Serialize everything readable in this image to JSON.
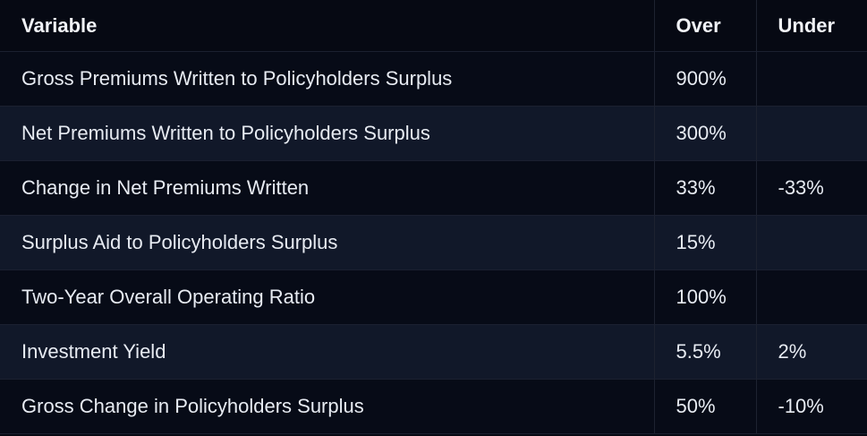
{
  "table": {
    "headers": {
      "variable": "Variable",
      "over": "Over",
      "under": "Under"
    },
    "rows": [
      {
        "variable": "Gross Premiums Written to Policyholders Surplus",
        "over": "900%",
        "under": ""
      },
      {
        "variable": "Net Premiums Written to Policyholders Surplus",
        "over": "300%",
        "under": ""
      },
      {
        "variable": "Change in Net Premiums Written",
        "over": "33%",
        "under": "-33%"
      },
      {
        "variable": "Surplus Aid to Policyholders Surplus",
        "over": "15%",
        "under": ""
      },
      {
        "variable": "Two-Year Overall Operating Ratio",
        "over": "100%",
        "under": ""
      },
      {
        "variable": "Investment Yield",
        "over": "5.5%",
        "under": "2%"
      },
      {
        "variable": "Gross Change in Policyholders Surplus",
        "over": "50%",
        "under": "-10%"
      }
    ]
  }
}
